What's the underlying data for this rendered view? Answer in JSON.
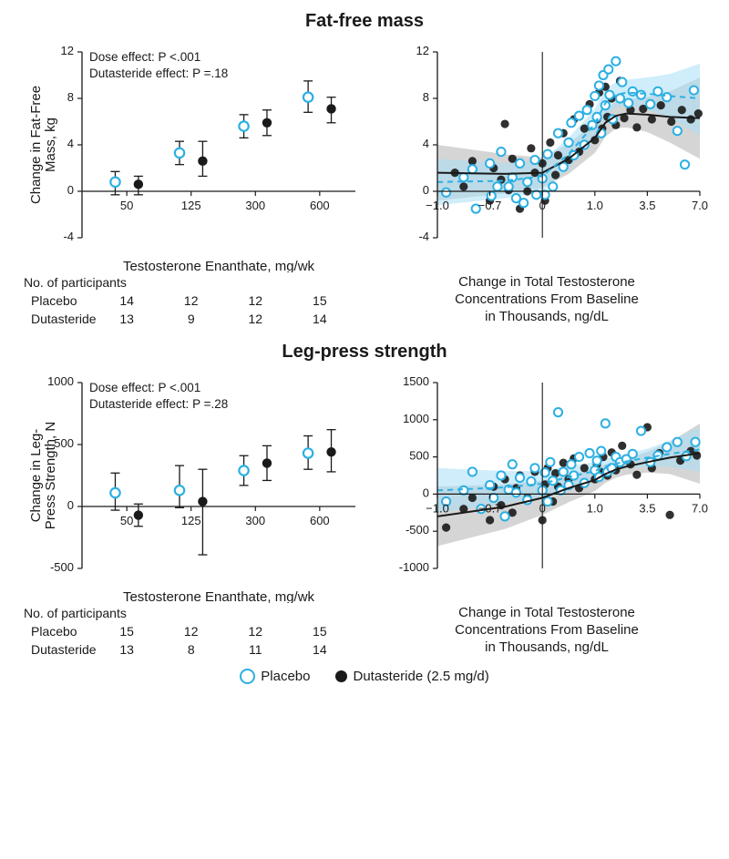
{
  "colors": {
    "text": "#1a1a1a",
    "axis": "#1a1a1a",
    "open_stroke": "#2cb0e3",
    "open_fill": "#ffffff",
    "solid_fill": "#1a1a1a",
    "band_open": "#a8dff5",
    "band_open_alpha": 0.55,
    "band_solid": "#b3b3b3",
    "band_solid_alpha": 0.55,
    "fit_open": "#2cb0e3",
    "fit_solid": "#1a1a1a",
    "bg": "#ffffff"
  },
  "fontsizes": {
    "title": 20,
    "axis_label": 15,
    "tick": 13,
    "annot": 13.5,
    "table_header": 14,
    "table_cell": 14,
    "legend": 15
  },
  "legend": {
    "placebo": "Placebo",
    "dutasteride": "Dutasteride (2.5 mg/d)"
  },
  "ffm": {
    "title": "Fat-free mass",
    "annot_dose": "Dose effect:  P <.001",
    "annot_dut": "Dutasteride effect:  P =.18",
    "errorbar": {
      "ylabel": "Change in Fat-Free\nMass, kg",
      "xlabel": "Testosterone Enanthate, mg/wk",
      "ylim": [
        -4,
        12
      ],
      "yticks": [
        -4,
        0,
        4,
        8,
        12
      ],
      "categories": [
        "50",
        "125",
        "300",
        "600"
      ],
      "cat_x_positions": [
        1,
        2,
        3,
        4
      ],
      "cat_offset": 0.18,
      "placebo": {
        "mean": [
          0.8,
          3.3,
          5.6,
          8.1
        ],
        "lo": [
          -0.3,
          2.3,
          4.6,
          6.8
        ],
        "hi": [
          1.7,
          4.3,
          6.6,
          9.5
        ]
      },
      "dutasteride": {
        "mean": [
          0.6,
          2.6,
          5.9,
          7.1
        ],
        "lo": [
          -0.3,
          1.3,
          4.8,
          5.9
        ],
        "hi": [
          1.3,
          4.3,
          7.0,
          8.1
        ]
      }
    },
    "table": {
      "header": "No. of participants",
      "rows": [
        {
          "label": "Placebo",
          "values": [
            "14",
            "12",
            "12",
            "15"
          ]
        },
        {
          "label": "Dutasteride",
          "values": [
            "13",
            "9",
            "12",
            "14"
          ]
        }
      ]
    },
    "scatter": {
      "ylabel_hidden": true,
      "xlabel": "Change in Total Testosterone\nConcentrations From Baseline\nin Thousands, ng/dL",
      "ylim": [
        -4,
        12
      ],
      "yticks": [
        -4,
        0,
        4,
        8,
        12
      ],
      "xlim": [
        -1.0,
        7.0
      ],
      "xticks": [
        -1.0,
        -0.7,
        0,
        1.0,
        3.5,
        7.0
      ],
      "xtick_labels": [
        "−1.0",
        "−0.7",
        "0",
        "1.0",
        "3.5",
        "7.0"
      ],
      "placebo_points": [
        [
          -0.95,
          -0.1
        ],
        [
          -0.85,
          1.2
        ],
        [
          -0.8,
          1.9
        ],
        [
          -0.78,
          -1.5
        ],
        [
          -0.7,
          2.4
        ],
        [
          -0.68,
          -0.4
        ],
        [
          -0.6,
          0.4
        ],
        [
          -0.55,
          3.4
        ],
        [
          -0.45,
          0.4
        ],
        [
          -0.4,
          1.2
        ],
        [
          -0.35,
          -0.6
        ],
        [
          -0.3,
          2.4
        ],
        [
          -0.25,
          -1.0
        ],
        [
          -0.2,
          0.8
        ],
        [
          -0.1,
          2.7
        ],
        [
          -0.08,
          -0.3
        ],
        [
          0.0,
          1.1
        ],
        [
          0.05,
          -0.3
        ],
        [
          0.1,
          3.2
        ],
        [
          0.2,
          0.4
        ],
        [
          0.3,
          5.0
        ],
        [
          0.4,
          2.1
        ],
        [
          0.5,
          4.2
        ],
        [
          0.55,
          5.9
        ],
        [
          0.6,
          3.1
        ],
        [
          0.7,
          6.5
        ],
        [
          0.8,
          4.0
        ],
        [
          0.85,
          7.0
        ],
        [
          0.95,
          5.7
        ],
        [
          1.0,
          8.2
        ],
        [
          1.1,
          6.4
        ],
        [
          1.2,
          9.1
        ],
        [
          1.3,
          5.0
        ],
        [
          1.4,
          10.0
        ],
        [
          1.5,
          7.4
        ],
        [
          1.65,
          10.5
        ],
        [
          1.7,
          8.3
        ],
        [
          1.85,
          6.2
        ],
        [
          2.0,
          11.2
        ],
        [
          2.2,
          8.0
        ],
        [
          2.3,
          9.4
        ],
        [
          2.6,
          7.6
        ],
        [
          2.8,
          8.6
        ],
        [
          3.2,
          8.3
        ],
        [
          3.7,
          7.5
        ],
        [
          4.2,
          8.6
        ],
        [
          4.8,
          8.1
        ],
        [
          5.5,
          5.2
        ],
        [
          6.0,
          2.3
        ],
        [
          6.6,
          8.7
        ]
      ],
      "dut_points": [
        [
          -0.9,
          1.6
        ],
        [
          -0.85,
          0.4
        ],
        [
          -0.8,
          2.6
        ],
        [
          -0.7,
          -0.8
        ],
        [
          -0.65,
          2.0
        ],
        [
          -0.55,
          1.0
        ],
        [
          -0.5,
          5.8
        ],
        [
          -0.45,
          0.1
        ],
        [
          -0.4,
          2.8
        ],
        [
          -0.3,
          -1.5
        ],
        [
          -0.2,
          0.0
        ],
        [
          -0.15,
          3.7
        ],
        [
          -0.1,
          1.6
        ],
        [
          0.0,
          2.4
        ],
        [
          0.05,
          -0.8
        ],
        [
          0.15,
          4.2
        ],
        [
          0.25,
          1.4
        ],
        [
          0.3,
          3.1
        ],
        [
          0.4,
          5.0
        ],
        [
          0.5,
          2.7
        ],
        [
          0.6,
          6.2
        ],
        [
          0.7,
          3.4
        ],
        [
          0.8,
          5.4
        ],
        [
          0.9,
          7.5
        ],
        [
          1.0,
          4.4
        ],
        [
          1.1,
          6.2
        ],
        [
          1.2,
          8.5
        ],
        [
          1.35,
          5.4
        ],
        [
          1.5,
          9.0
        ],
        [
          1.6,
          6.4
        ],
        [
          1.8,
          8.0
        ],
        [
          2.0,
          5.7
        ],
        [
          2.2,
          9.5
        ],
        [
          2.4,
          6.3
        ],
        [
          2.7,
          7.0
        ],
        [
          3.0,
          5.5
        ],
        [
          3.3,
          7.1
        ],
        [
          3.8,
          6.2
        ],
        [
          4.4,
          7.4
        ],
        [
          5.1,
          6.0
        ],
        [
          5.8,
          7.0
        ],
        [
          6.4,
          6.2
        ],
        [
          6.9,
          6.7
        ]
      ],
      "fit_placebo": {
        "x": [
          -1.0,
          -0.5,
          0.0,
          0.5,
          1.0,
          1.5,
          2.0,
          2.5,
          3.5,
          5.0,
          7.0
        ],
        "y": [
          0.8,
          0.9,
          1.3,
          3.2,
          5.8,
          7.6,
          8.3,
          8.5,
          8.4,
          8.2,
          8.0
        ],
        "lo": [
          -1.2,
          -0.6,
          0.0,
          1.9,
          4.5,
          6.4,
          7.2,
          7.4,
          7.0,
          6.3,
          4.8
        ],
        "hi": [
          2.8,
          2.4,
          2.7,
          4.6,
          7.1,
          8.8,
          9.4,
          9.6,
          9.8,
          10.1,
          11.0
        ]
      },
      "fit_dut": {
        "x": [
          -1.0,
          -0.5,
          0.0,
          0.5,
          1.0,
          1.5,
          2.0,
          2.5,
          3.5,
          5.0,
          7.0
        ],
        "y": [
          1.6,
          1.5,
          1.6,
          2.8,
          4.6,
          5.9,
          6.5,
          6.7,
          6.6,
          6.4,
          6.3
        ],
        "lo": [
          -0.8,
          -0.2,
          0.3,
          1.5,
          3.3,
          4.7,
          5.4,
          5.5,
          5.1,
          4.2,
          2.8
        ],
        "hi": [
          4.0,
          3.2,
          2.9,
          4.1,
          5.9,
          7.1,
          7.7,
          7.9,
          8.1,
          8.6,
          9.8
        ]
      }
    }
  },
  "leg": {
    "title": "Leg-press strength",
    "annot_dose": "Dose effect:  P <.001",
    "annot_dut": "Dutasteride effect:  P =.28",
    "errorbar": {
      "ylabel": "Change in Leg-\nPress Strength, N",
      "xlabel": "Testosterone Enanthate, mg/wk",
      "ylim": [
        -500,
        1000
      ],
      "yticks": [
        -500,
        0,
        500,
        1000
      ],
      "categories": [
        "50",
        "125",
        "300",
        "600"
      ],
      "cat_x_positions": [
        1,
        2,
        3,
        4
      ],
      "cat_offset": 0.18,
      "placebo": {
        "mean": [
          110,
          130,
          290,
          430
        ],
        "lo": [
          -30,
          -10,
          170,
          300
        ],
        "hi": [
          270,
          330,
          410,
          570
        ]
      },
      "dutasteride": {
        "mean": [
          -70,
          40,
          350,
          440
        ],
        "lo": [
          -160,
          -390,
          210,
          280
        ],
        "hi": [
          20,
          300,
          490,
          620
        ]
      }
    },
    "table": {
      "header": "No. of participants",
      "rows": [
        {
          "label": "Placebo",
          "values": [
            "15",
            "12",
            "12",
            "15"
          ]
        },
        {
          "label": "Dutasteride",
          "values": [
            "13",
            "8",
            "11",
            "14"
          ]
        }
      ]
    },
    "scatter": {
      "xlabel": "Change in Total Testosterone\nConcentrations From Baseline\nin Thousands, ng/dL",
      "ylim": [
        -1000,
        1500
      ],
      "yticks": [
        -1000,
        -500,
        0,
        500,
        1000,
        1500
      ],
      "xlim": [
        -1.0,
        7.0
      ],
      "xticks": [
        -1.0,
        -0.7,
        0,
        1.0,
        3.5,
        7.0
      ],
      "xtick_labels": [
        "−1.0",
        "−0.7",
        "0",
        "1.0",
        "3.5",
        "7.0"
      ],
      "placebo_points": [
        [
          -0.95,
          -100
        ],
        [
          -0.85,
          50
        ],
        [
          -0.8,
          300
        ],
        [
          -0.75,
          -200
        ],
        [
          -0.7,
          120
        ],
        [
          -0.65,
          -50
        ],
        [
          -0.55,
          250
        ],
        [
          -0.5,
          -300
        ],
        [
          -0.45,
          60
        ],
        [
          -0.4,
          400
        ],
        [
          -0.35,
          20
        ],
        [
          -0.3,
          220
        ],
        [
          -0.2,
          -80
        ],
        [
          -0.15,
          170
        ],
        [
          -0.1,
          350
        ],
        [
          0.0,
          50
        ],
        [
          0.05,
          290
        ],
        [
          0.1,
          -100
        ],
        [
          0.15,
          430
        ],
        [
          0.2,
          180
        ],
        [
          0.3,
          1100
        ],
        [
          0.35,
          50
        ],
        [
          0.4,
          300
        ],
        [
          0.5,
          120
        ],
        [
          0.55,
          400
        ],
        [
          0.6,
          250
        ],
        [
          0.7,
          500
        ],
        [
          0.8,
          150
        ],
        [
          0.9,
          550
        ],
        [
          1.0,
          320
        ],
        [
          1.1,
          450
        ],
        [
          1.2,
          230
        ],
        [
          1.3,
          580
        ],
        [
          1.5,
          950
        ],
        [
          1.6,
          300
        ],
        [
          1.8,
          350
        ],
        [
          2.0,
          500
        ],
        [
          2.2,
          430
        ],
        [
          2.5,
          470
        ],
        [
          2.8,
          540
        ],
        [
          3.2,
          850
        ],
        [
          3.7,
          430
        ],
        [
          4.2,
          520
        ],
        [
          4.8,
          630
        ],
        [
          5.5,
          700
        ],
        [
          6.1,
          510
        ],
        [
          6.7,
          700
        ]
      ],
      "dut_points": [
        [
          -0.95,
          -450
        ],
        [
          -0.85,
          -200
        ],
        [
          -0.8,
          -50
        ],
        [
          -0.7,
          -350
        ],
        [
          -0.65,
          100
        ],
        [
          -0.55,
          -150
        ],
        [
          -0.5,
          200
        ],
        [
          -0.4,
          -250
        ],
        [
          -0.35,
          80
        ],
        [
          -0.3,
          250
        ],
        [
          -0.2,
          -50
        ],
        [
          -0.1,
          300
        ],
        [
          0.0,
          -350
        ],
        [
          0.05,
          130
        ],
        [
          0.1,
          350
        ],
        [
          0.2,
          -100
        ],
        [
          0.25,
          280
        ],
        [
          0.3,
          100
        ],
        [
          0.4,
          420
        ],
        [
          0.5,
          200
        ],
        [
          0.6,
          480
        ],
        [
          0.7,
          80
        ],
        [
          0.8,
          350
        ],
        [
          0.9,
          560
        ],
        [
          1.0,
          200
        ],
        [
          1.1,
          400
        ],
        [
          1.25,
          300
        ],
        [
          1.4,
          500
        ],
        [
          1.6,
          250
        ],
        [
          1.8,
          560
        ],
        [
          2.0,
          320
        ],
        [
          2.3,
          650
        ],
        [
          2.7,
          400
        ],
        [
          3.0,
          260
        ],
        [
          3.5,
          900
        ],
        [
          3.8,
          350
        ],
        [
          4.3,
          550
        ],
        [
          5.0,
          -280
        ],
        [
          5.7,
          450
        ],
        [
          6.4,
          580
        ],
        [
          6.8,
          520
        ]
      ],
      "fit_placebo": {
        "x": [
          -1.0,
          -0.5,
          0.0,
          0.5,
          1.0,
          1.5,
          2.0,
          2.5,
          3.5,
          5.0,
          7.0
        ],
        "y": [
          50,
          90,
          140,
          230,
          310,
          370,
          410,
          440,
          490,
          540,
          600
        ],
        "lo": [
          -250,
          -130,
          -30,
          80,
          190,
          270,
          320,
          350,
          370,
          370,
          300
        ],
        "hi": [
          350,
          310,
          310,
          380,
          430,
          470,
          510,
          540,
          610,
          720,
          900
        ]
      },
      "fit_dut": {
        "x": [
          -1.0,
          -0.5,
          0.0,
          0.5,
          1.0,
          1.5,
          2.0,
          2.5,
          3.5,
          5.0,
          7.0
        ],
        "y": [
          -300,
          -170,
          -50,
          80,
          190,
          270,
          330,
          370,
          430,
          490,
          550
        ],
        "lo": [
          -700,
          -470,
          -280,
          -110,
          40,
          150,
          220,
          260,
          290,
          270,
          140
        ],
        "hi": [
          100,
          130,
          180,
          270,
          340,
          400,
          440,
          480,
          570,
          700,
          950
        ]
      }
    }
  }
}
